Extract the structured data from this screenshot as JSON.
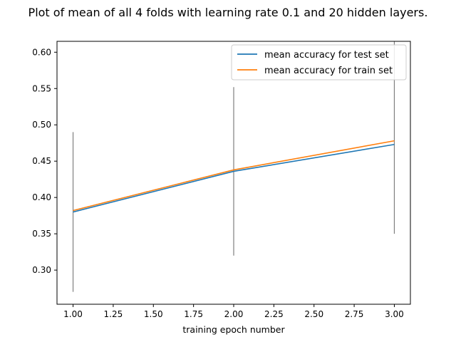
{
  "chart_data": {
    "type": "line",
    "title": "Plot of mean of all 4 folds with learning rate 0.1 and 20 hidden layers.",
    "xlabel": "training epoch number",
    "ylabel": "",
    "xlim": [
      0.9,
      3.1
    ],
    "ylim": [
      0.253,
      0.615
    ],
    "x_ticks": [
      1.0,
      1.25,
      1.5,
      1.75,
      2.0,
      2.25,
      2.5,
      2.75,
      3.0
    ],
    "x_tick_labels": [
      "1.00",
      "1.25",
      "1.50",
      "1.75",
      "2.00",
      "2.25",
      "2.50",
      "2.75",
      "3.00"
    ],
    "y_ticks": [
      0.3,
      0.35,
      0.4,
      0.45,
      0.5,
      0.55,
      0.6
    ],
    "y_tick_labels": [
      "0.30",
      "0.35",
      "0.40",
      "0.45",
      "0.50",
      "0.55",
      "0.60"
    ],
    "grid": false,
    "legend_position": "top-right",
    "x": [
      1,
      2,
      3
    ],
    "series": [
      {
        "name": "mean accuracy for test set",
        "color": "#1f77b4",
        "values": [
          0.38,
          0.436,
          0.473
        ]
      },
      {
        "name": "mean accuracy for train set",
        "color": "#ff7f0e",
        "values": [
          0.382,
          0.438,
          0.478
        ]
      }
    ],
    "error_bars": {
      "color": "#808080",
      "ranges": [
        {
          "x": 1,
          "low": 0.27,
          "high": 0.49
        },
        {
          "x": 2,
          "low": 0.32,
          "high": 0.552
        },
        {
          "x": 3,
          "low": 0.35,
          "high": 0.615
        }
      ]
    }
  }
}
